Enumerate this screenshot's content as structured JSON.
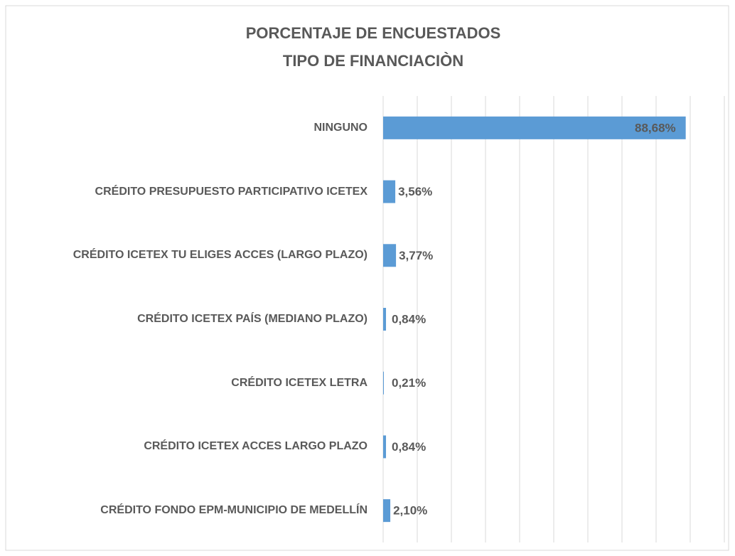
{
  "chart_data": {
    "type": "bar",
    "orientation": "horizontal",
    "title": [
      "PORCENTAJE DE ENCUESTADOS",
      "TIPO DE FINANCIACIÒN"
    ],
    "categories": [
      "NINGUNO",
      "CRÉDITO PRESUPUESTO PARTICIPATIVO ICETEX",
      "CRÉDITO ICETEX TU ELIGES ACCES (LARGO PLAZO)",
      "CRÉDITO ICETEX PAÍS (MEDIANO PLAZO)",
      "CRÉDITO ICETEX LETRA",
      "CRÉDITO ICETEX ACCES LARGO PLAZO",
      "CRÉDITO FONDO EPM-MUNICIPIO DE MEDELLÍN"
    ],
    "values": [
      88.68,
      3.56,
      3.77,
      0.84,
      0.21,
      0.84,
      2.1
    ],
    "value_labels": [
      "88,68%",
      "3,56%",
      "3,77%",
      "0,84%",
      "0,21%",
      "0,84%",
      "2,10%"
    ],
    "color": "#5b9bd5",
    "xlim": [
      0,
      100
    ],
    "xticks": [
      0,
      10,
      20,
      30,
      40,
      50,
      60,
      70,
      80,
      90,
      100
    ],
    "grid": true
  }
}
